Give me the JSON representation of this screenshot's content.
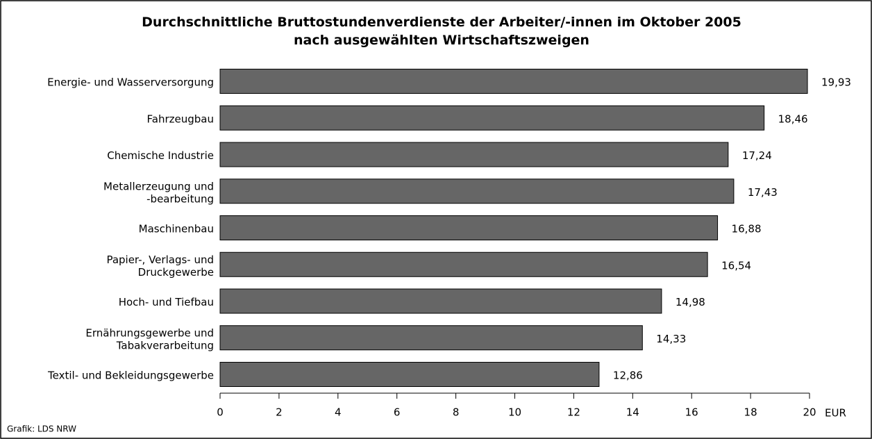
{
  "chart_data": {
    "type": "barh",
    "title": "Durchschnittliche Bruttostundenverdienste der Arbeiter/-innen im Oktober 2005\nnach ausgewählten Wirtschaftszweigen",
    "categories": [
      "Energie- und Wasserversorgung",
      "Fahrzeugbau",
      "Chemische Industrie",
      "Metallerzeugung und\n-bearbeitung",
      "Maschinenbau",
      "Papier-, Verlags- und\nDruckgewerbe",
      "Hoch- und Tiefbau",
      "Ernährungsgewerbe und\nTabakverarbeitung",
      "Textil- und Bekleidungsgewerbe"
    ],
    "values": [
      19.93,
      18.46,
      17.24,
      17.43,
      16.88,
      16.54,
      14.98,
      14.33,
      12.86
    ],
    "value_labels": [
      "19,93",
      "18,46",
      "17,24",
      "17,43",
      "16,88",
      "16,54",
      "14,98",
      "14,33",
      "12,86"
    ],
    "color": "#666666",
    "xlim": [
      0,
      20
    ],
    "xticks": [
      0,
      2,
      4,
      6,
      8,
      10,
      12,
      14,
      16,
      18,
      20
    ],
    "x_label": "EUR",
    "source": "Grafik: LDS NRW"
  }
}
